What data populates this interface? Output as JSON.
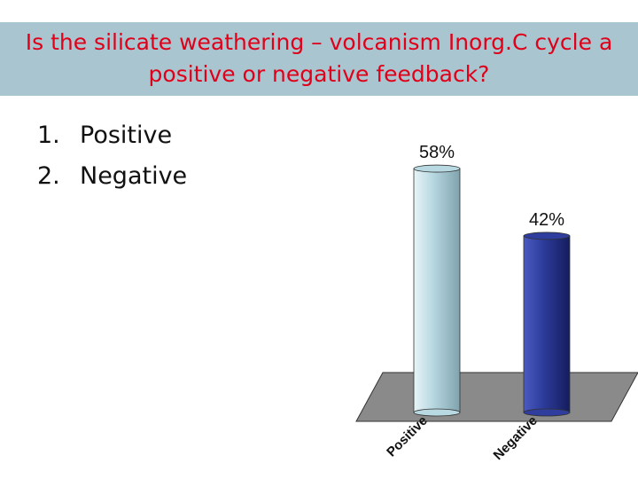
{
  "title": "Is the silicate weathering – volcanism Inorg.C cycle a positive or negative feedback?",
  "options": [
    {
      "number": "1.",
      "label": "Positive"
    },
    {
      "number": "2.",
      "label": "Negative"
    }
  ],
  "chart_data": {
    "type": "bar",
    "categories": [
      "Positive",
      "Negative"
    ],
    "values": [
      58,
      42
    ],
    "value_labels": [
      "58%",
      "42%"
    ],
    "colors": [
      "#b9d9e2",
      "#2e3d9e"
    ]
  }
}
